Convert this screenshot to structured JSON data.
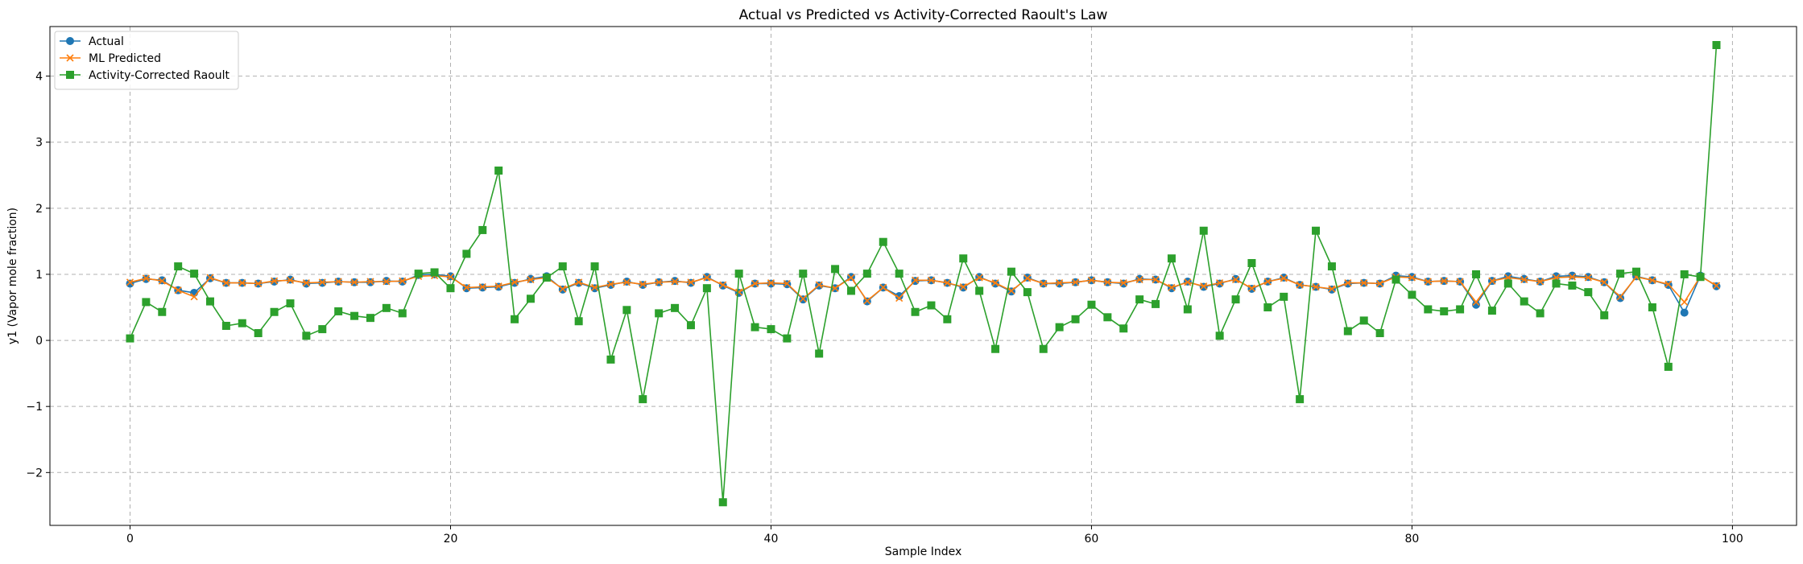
{
  "chart_data": {
    "type": "line",
    "title": "Actual vs Predicted vs Activity-Corrected Raoult's Law",
    "xlabel": "Sample Index",
    "ylabel": "y1 (Vapor mole fraction)",
    "xlim": [
      -5,
      104
    ],
    "ylim": [
      -2.8,
      4.75
    ],
    "xticks": [
      0,
      20,
      40,
      60,
      80,
      100
    ],
    "yticks": [
      -2,
      -1,
      0,
      1,
      2,
      3,
      4
    ],
    "grid": true,
    "legend_position": "top-left",
    "x": [
      0,
      1,
      2,
      3,
      4,
      5,
      6,
      7,
      8,
      9,
      10,
      11,
      12,
      13,
      14,
      15,
      16,
      17,
      18,
      19,
      20,
      21,
      22,
      23,
      24,
      25,
      26,
      27,
      28,
      29,
      30,
      31,
      32,
      33,
      34,
      35,
      36,
      37,
      38,
      39,
      40,
      41,
      42,
      43,
      44,
      45,
      46,
      47,
      48,
      49,
      50,
      51,
      52,
      53,
      54,
      55,
      56,
      57,
      58,
      59,
      60,
      61,
      62,
      63,
      64,
      65,
      66,
      67,
      68,
      69,
      70,
      71,
      72,
      73,
      74,
      75,
      76,
      77,
      78,
      79,
      80,
      81,
      82,
      83,
      84,
      85,
      86,
      87,
      88,
      89,
      90,
      91,
      92,
      93,
      94,
      95,
      96,
      97,
      98,
      99
    ],
    "series": [
      {
        "name": "Actual",
        "color": "#1f77b4",
        "marker": "circle",
        "values": [
          0.86,
          0.93,
          0.91,
          0.76,
          0.72,
          0.94,
          0.87,
          0.87,
          0.86,
          0.89,
          0.92,
          0.86,
          0.87,
          0.89,
          0.88,
          0.88,
          0.9,
          0.89,
          0.99,
          1.0,
          0.97,
          0.79,
          0.8,
          0.81,
          0.87,
          0.93,
          0.97,
          0.77,
          0.87,
          0.79,
          0.84,
          0.89,
          0.84,
          0.88,
          0.9,
          0.87,
          0.96,
          0.83,
          0.72,
          0.86,
          0.86,
          0.85,
          0.62,
          0.83,
          0.79,
          0.96,
          0.59,
          0.8,
          0.67,
          0.9,
          0.91,
          0.87,
          0.8,
          0.96,
          0.86,
          0.74,
          0.95,
          0.86,
          0.86,
          0.88,
          0.91,
          0.88,
          0.86,
          0.93,
          0.92,
          0.79,
          0.89,
          0.81,
          0.86,
          0.93,
          0.78,
          0.89,
          0.95,
          0.84,
          0.81,
          0.77,
          0.86,
          0.87,
          0.86,
          0.98,
          0.96,
          0.89,
          0.9,
          0.89,
          0.54,
          0.9,
          0.97,
          0.93,
          0.89,
          0.97,
          0.98,
          0.96,
          0.88,
          0.64,
          0.97,
          0.91,
          0.84,
          0.42,
          0.98,
          0.82
        ]
      },
      {
        "name": "ML Predicted",
        "color": "#ff7f0e",
        "marker": "x",
        "values": [
          0.88,
          0.94,
          0.9,
          0.76,
          0.66,
          0.95,
          0.87,
          0.87,
          0.86,
          0.9,
          0.91,
          0.87,
          0.88,
          0.89,
          0.88,
          0.89,
          0.89,
          0.9,
          0.97,
          0.98,
          0.96,
          0.8,
          0.81,
          0.82,
          0.88,
          0.92,
          0.95,
          0.78,
          0.88,
          0.8,
          0.85,
          0.88,
          0.85,
          0.88,
          0.89,
          0.88,
          0.95,
          0.84,
          0.73,
          0.86,
          0.87,
          0.86,
          0.63,
          0.84,
          0.79,
          0.95,
          0.6,
          0.8,
          0.64,
          0.91,
          0.91,
          0.87,
          0.81,
          0.95,
          0.87,
          0.75,
          0.94,
          0.86,
          0.87,
          0.88,
          0.91,
          0.88,
          0.87,
          0.92,
          0.92,
          0.8,
          0.88,
          0.82,
          0.87,
          0.92,
          0.79,
          0.89,
          0.94,
          0.84,
          0.81,
          0.78,
          0.87,
          0.87,
          0.86,
          0.96,
          0.95,
          0.89,
          0.9,
          0.89,
          0.58,
          0.9,
          0.95,
          0.92,
          0.89,
          0.95,
          0.96,
          0.95,
          0.88,
          0.66,
          0.96,
          0.91,
          0.85,
          0.58,
          0.97,
          0.83
        ]
      },
      {
        "name": "Activity-Corrected Raoult",
        "color": "#2ca02c",
        "marker": "square",
        "values": [
          0.03,
          0.58,
          0.43,
          1.12,
          1.01,
          0.59,
          0.22,
          0.26,
          0.11,
          0.43,
          0.56,
          0.07,
          0.17,
          0.44,
          0.37,
          0.34,
          0.49,
          0.41,
          1.01,
          1.03,
          0.79,
          1.31,
          1.67,
          2.57,
          0.32,
          0.63,
          0.95,
          1.12,
          0.29,
          1.12,
          -0.29,
          0.46,
          -0.89,
          0.41,
          0.49,
          0.23,
          0.79,
          -2.45,
          1.01,
          0.2,
          0.17,
          0.03,
          1.01,
          -0.2,
          1.08,
          0.75,
          1.01,
          1.49,
          1.01,
          0.43,
          0.53,
          0.32,
          1.24,
          0.75,
          -0.13,
          1.04,
          0.73,
          -0.13,
          0.2,
          0.32,
          0.54,
          0.35,
          0.18,
          0.62,
          0.55,
          1.24,
          0.47,
          1.66,
          0.07,
          0.62,
          1.17,
          0.5,
          0.66,
          -0.89,
          1.66,
          1.12,
          0.14,
          0.3,
          0.11,
          0.92,
          0.69,
          0.47,
          0.44,
          0.47,
          1.0,
          0.45,
          0.86,
          0.59,
          0.41,
          0.86,
          0.83,
          0.73,
          0.38,
          1.01,
          1.04,
          0.5,
          -0.4,
          1.0,
          0.96,
          4.47
        ]
      }
    ]
  }
}
